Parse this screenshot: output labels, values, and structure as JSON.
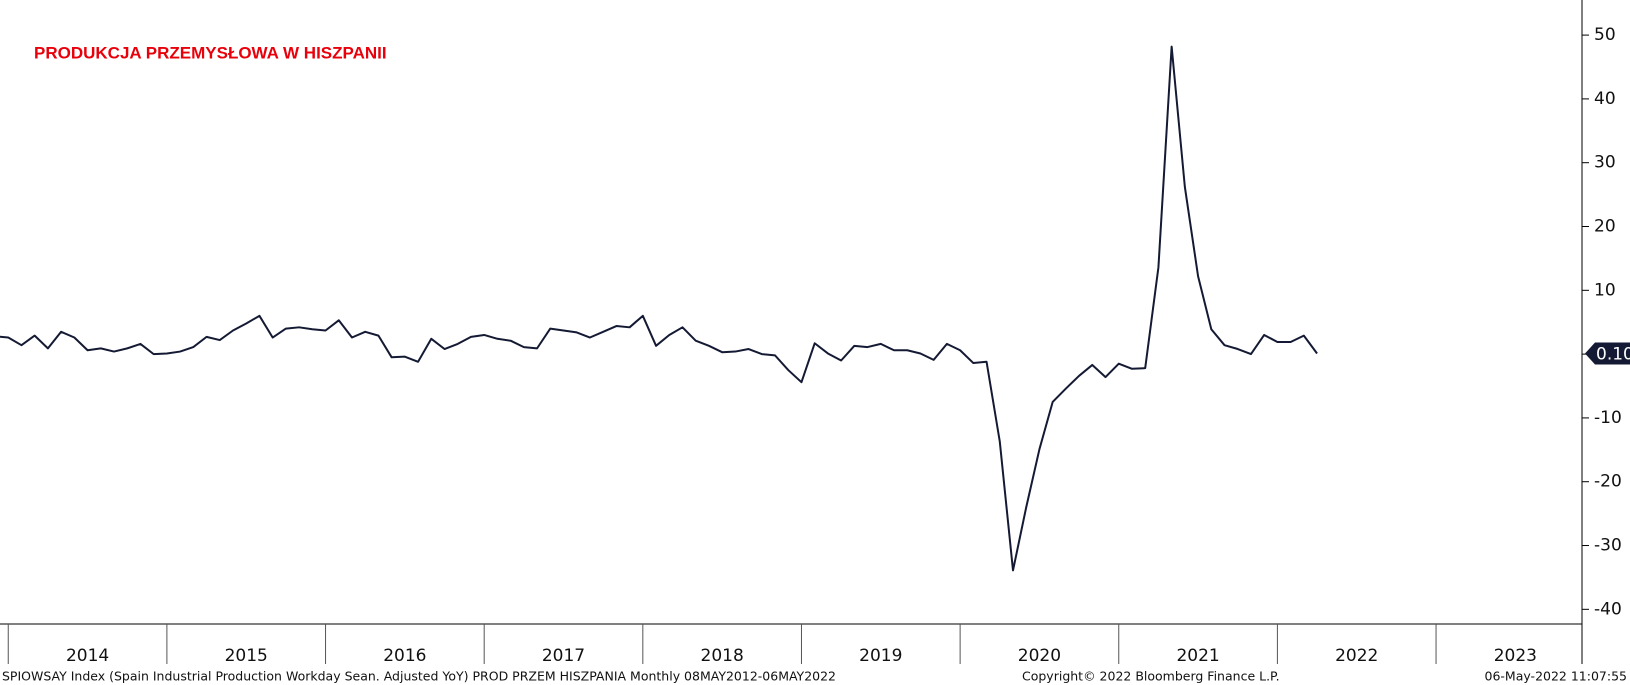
{
  "chart_data": {
    "type": "line",
    "title": "PRODUKCJA PRZEMYSŁOWA W HISZPANII",
    "footer_left": "SPIOWSAY Index (Spain Industrial Production Workday Sean. Adjusted YoY) PROD PRZEM HISZPANIA  Monthly 08MAY2012-06MAY2022",
    "footer_center": "Copyright© 2022 Bloomberg Finance L.P.",
    "footer_right": "06-May-2022 11:07:55",
    "color": "#141a33",
    "x": [
      "2013-11",
      "2013-12",
      "2014-01",
      "2014-02",
      "2014-03",
      "2014-04",
      "2014-05",
      "2014-06",
      "2014-07",
      "2014-08",
      "2014-09",
      "2014-10",
      "2014-11",
      "2014-12",
      "2015-01",
      "2015-02",
      "2015-03",
      "2015-04",
      "2015-05",
      "2015-06",
      "2015-07",
      "2015-08",
      "2015-09",
      "2015-10",
      "2015-11",
      "2015-12",
      "2016-01",
      "2016-02",
      "2016-03",
      "2016-04",
      "2016-05",
      "2016-06",
      "2016-07",
      "2016-08",
      "2016-09",
      "2016-10",
      "2016-11",
      "2016-12",
      "2017-01",
      "2017-02",
      "2017-03",
      "2017-04",
      "2017-05",
      "2017-06",
      "2017-07",
      "2017-08",
      "2017-09",
      "2017-10",
      "2017-11",
      "2017-12",
      "2018-01",
      "2018-02",
      "2018-03",
      "2018-04",
      "2018-05",
      "2018-06",
      "2018-07",
      "2018-08",
      "2018-09",
      "2018-10",
      "2018-11",
      "2018-12",
      "2019-01",
      "2019-02",
      "2019-03",
      "2019-04",
      "2019-05",
      "2019-06",
      "2019-07",
      "2019-08",
      "2019-09",
      "2019-10",
      "2019-11",
      "2019-12",
      "2020-01",
      "2020-02",
      "2020-03",
      "2020-04",
      "2020-05",
      "2020-06",
      "2020-07",
      "2020-08",
      "2020-09",
      "2020-10",
      "2020-11",
      "2020-12",
      "2021-01",
      "2021-02",
      "2021-03",
      "2021-04",
      "2021-05",
      "2021-06",
      "2021-07",
      "2021-08",
      "2021-09",
      "2021-10",
      "2021-11",
      "2021-12",
      "2022-01",
      "2022-02",
      "2022-03"
    ],
    "values": [
      2.8,
      2.6,
      1.4,
      2.9,
      0.9,
      3.5,
      2.6,
      0.6,
      0.9,
      0.4,
      0.9,
      1.6,
      0.0,
      0.1,
      0.4,
      1.1,
      2.7,
      2.2,
      3.7,
      4.8,
      6.0,
      2.6,
      4.0,
      4.2,
      3.9,
      3.7,
      5.3,
      2.6,
      3.5,
      2.9,
      -0.5,
      -0.4,
      -1.2,
      2.4,
      0.8,
      1.6,
      2.7,
      3.0,
      2.4,
      2.1,
      1.1,
      0.9,
      4.0,
      3.7,
      3.4,
      2.6,
      3.5,
      4.4,
      4.2,
      6.0,
      1.3,
      3.0,
      4.2,
      2.1,
      1.3,
      0.3,
      0.4,
      0.8,
      0.0,
      -0.2,
      -2.5,
      -4.4,
      1.7,
      0.1,
      -1.0,
      1.3,
      1.1,
      1.6,
      0.6,
      0.6,
      0.1,
      -0.9,
      1.6,
      0.6,
      -1.4,
      -1.2,
      -13.7,
      -33.9,
      -24.0,
      -14.9,
      -7.5,
      -5.4,
      -3.4,
      -1.7,
      -3.6,
      -1.5,
      -2.3,
      -2.2,
      13.6,
      48.2,
      26.2,
      12.2,
      3.9,
      1.4,
      0.8,
      0.0,
      3.0,
      1.9,
      1.9,
      2.9,
      0.1
    ],
    "value_labels": [
      null,
      null,
      null,
      null,
      null,
      null,
      null,
      null,
      null,
      null,
      null,
      null,
      null,
      null,
      null,
      null,
      null,
      null,
      null,
      null,
      null,
      null,
      null,
      null,
      null,
      null,
      null,
      null,
      null,
      null,
      null,
      null,
      null,
      null,
      null,
      null,
      null,
      null,
      null,
      null,
      null,
      null,
      null,
      null,
      null,
      null,
      null,
      null,
      null,
      null,
      null,
      null,
      null,
      null,
      null,
      null,
      null,
      null,
      null,
      null,
      null,
      null,
      null,
      null,
      null,
      null,
      null,
      null,
      null,
      null,
      null,
      null,
      null,
      null,
      null,
      null,
      null,
      null,
      null,
      null,
      null,
      null,
      null,
      null,
      null,
      null,
      null,
      null,
      null,
      null,
      null,
      null,
      null,
      null,
      null,
      null,
      null,
      null,
      null,
      null,
      "0.10"
    ],
    "xlim": [
      2013.948,
      2023.92
    ],
    "xticks": [
      2014,
      2015,
      2016,
      2017,
      2018,
      2019,
      2020,
      2021,
      2022,
      2023
    ],
    "ylim": [
      -42.3,
      55.5
    ],
    "yticks": [
      -40,
      -30,
      -20,
      -10,
      0,
      10,
      20,
      30,
      40,
      50
    ]
  }
}
